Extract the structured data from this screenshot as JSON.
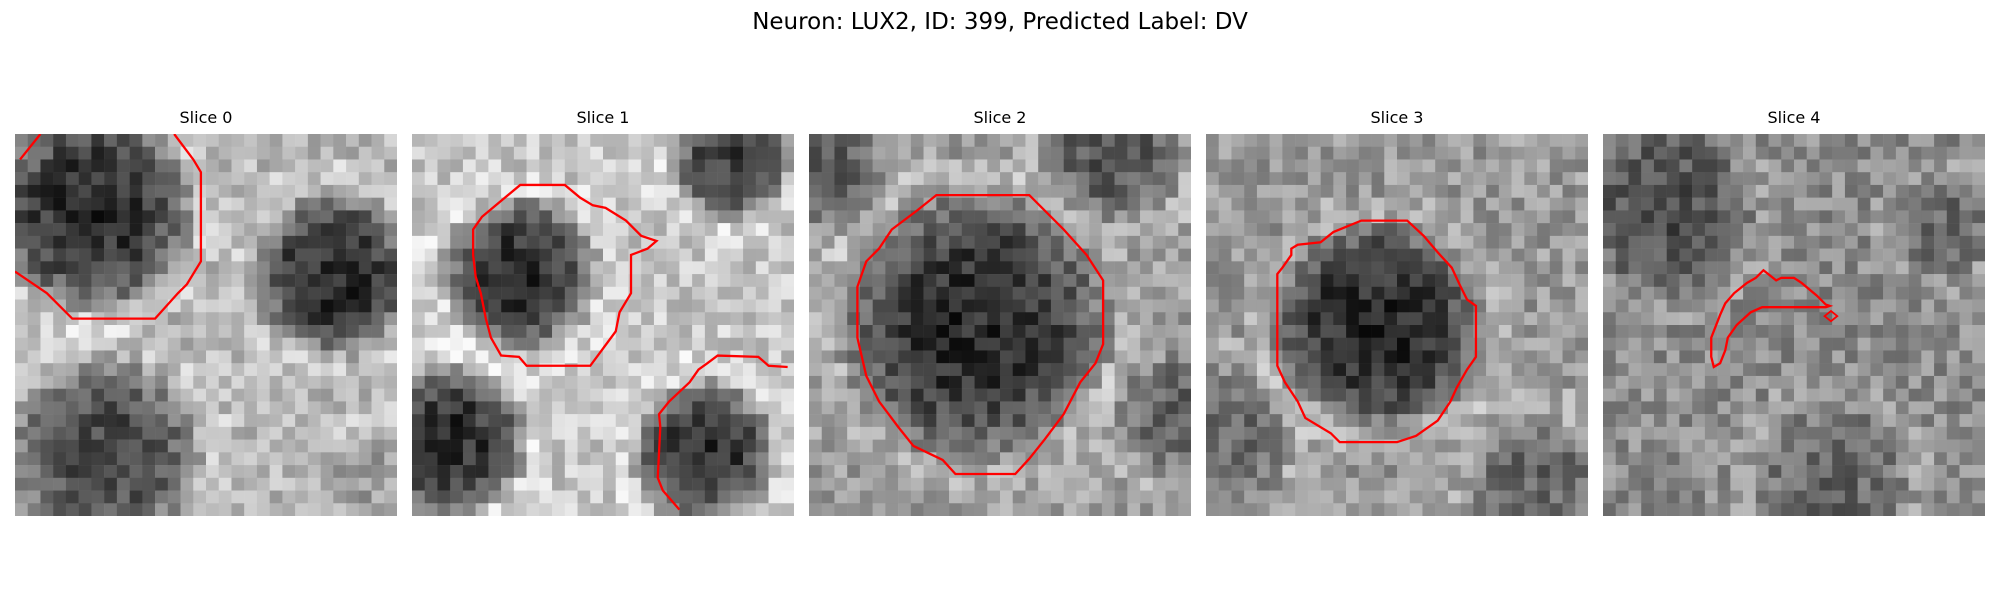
{
  "figure": {
    "title": "Neuron: LUX2, ID: 399, Predicted Label: DV"
  },
  "panels": [
    {
      "title": "Slice 0"
    },
    {
      "title": "Slice 1"
    },
    {
      "title": "Slice 2"
    },
    {
      "title": "Slice 3"
    },
    {
      "title": "Slice 4"
    }
  ],
  "colors": {
    "contour": "#ff0000",
    "background": "#ffffff",
    "colormap": "gray"
  }
}
